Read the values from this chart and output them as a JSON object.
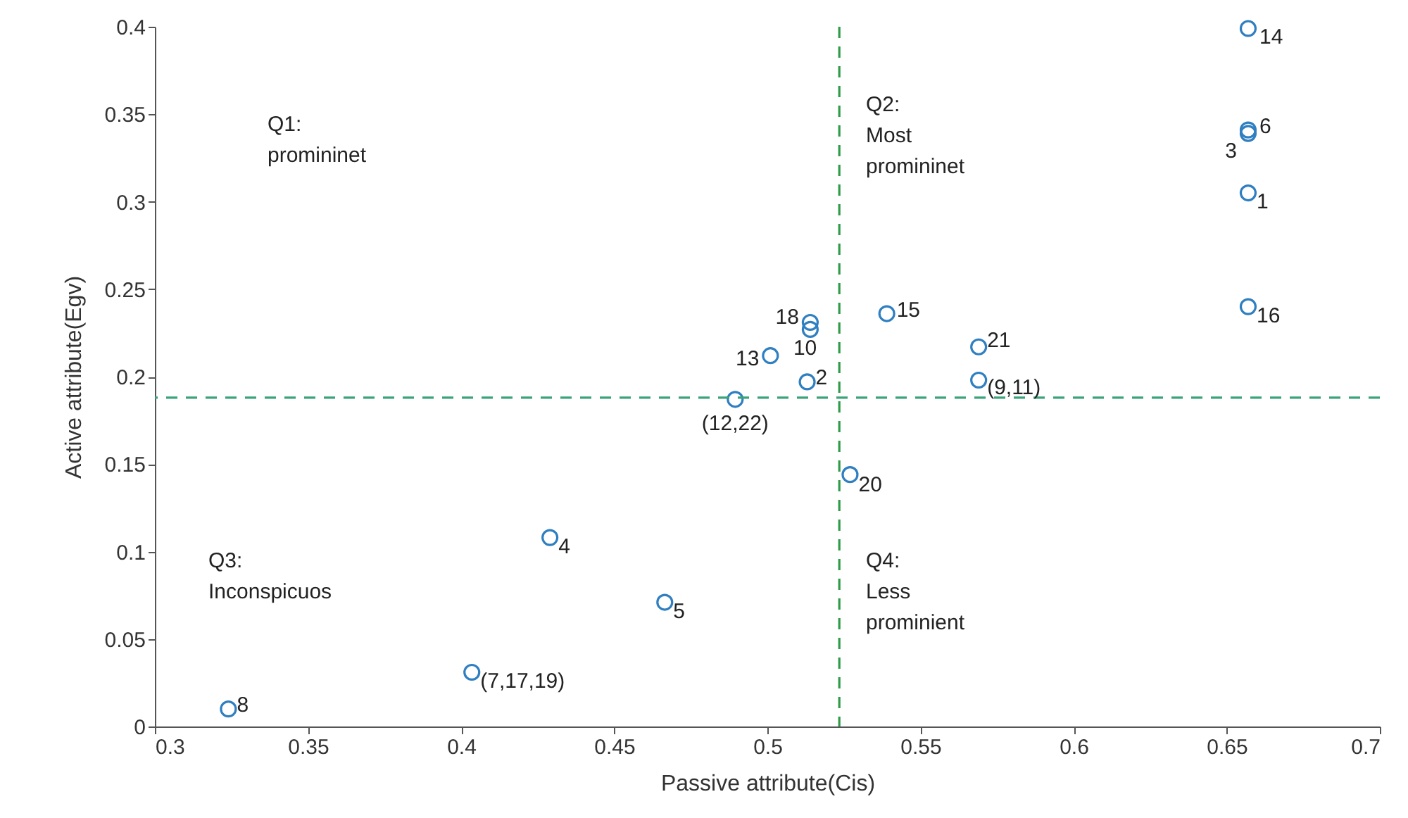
{
  "chart_data": {
    "type": "scatter",
    "xlabel": "Passive attribute(Cis)",
    "ylabel": "Active attribute(Egv)",
    "xlim": [
      0.3,
      0.7
    ],
    "xticks": [
      0.3,
      0.35,
      0.4,
      0.45,
      0.5,
      0.55,
      0.6,
      0.65,
      0.7
    ],
    "ylim": [
      0,
      0.4
    ],
    "yticks": [
      0,
      0.05,
      0.1,
      0.15,
      0.2,
      0.25,
      0.3,
      0.35,
      0.4
    ],
    "marker": "circle",
    "grid": false,
    "series": [
      {
        "color": "#2f7fc1",
        "x": [
          0.657,
          0.657,
          0.657,
          0.657,
          0.657,
          0.539,
          0.514,
          0.514,
          0.501,
          0.569,
          0.513,
          0.569,
          0.4895,
          0.527,
          0.429,
          0.4665,
          0.4035,
          0.324
        ],
        "values": [
          0.399,
          0.341,
          0.339,
          0.305,
          0.24,
          0.236,
          0.231,
          0.227,
          0.212,
          0.217,
          0.197,
          0.198,
          0.187,
          0.144,
          0.108,
          0.071,
          0.031,
          0.01
        ]
      }
    ],
    "ref_lines": [
      {
        "axis": "x",
        "value": 0.5235,
        "color": "#2e9b4a",
        "line_style": "dashed"
      },
      {
        "axis": "y",
        "value": 0.188,
        "color": "#3aa37a",
        "line_style": "dashed"
      }
    ],
    "annotations": [
      "Q1:\npromininet",
      "Q2:\nMost\npromininet",
      "Q3:\nInconspicuos",
      "Q4:\nLess\nprominient",
      {
        "text": "14",
        "x": 0.657,
        "y": 0.399
      },
      {
        "text": "6",
        "x": 0.657,
        "y": 0.341
      },
      {
        "text": "3",
        "x": 0.657,
        "y": 0.339
      },
      {
        "text": "1",
        "x": 0.657,
        "y": 0.305
      },
      {
        "text": "16",
        "x": 0.657,
        "y": 0.24
      },
      {
        "text": "15",
        "x": 0.539,
        "y": 0.236
      },
      {
        "text": "18",
        "x": 0.514,
        "y": 0.231
      },
      {
        "text": "10",
        "x": 0.514,
        "y": 0.227
      },
      {
        "text": "13",
        "x": 0.501,
        "y": 0.212
      },
      {
        "text": "21",
        "x": 0.569,
        "y": 0.217
      },
      {
        "text": "2",
        "x": 0.513,
        "y": 0.197
      },
      {
        "text": "(9,11)",
        "x": 0.569,
        "y": 0.198
      },
      {
        "text": "(12,22)",
        "x": 0.4895,
        "y": 0.187
      },
      {
        "text": "20",
        "x": 0.527,
        "y": 0.144
      },
      {
        "text": "4",
        "x": 0.429,
        "y": 0.108
      },
      {
        "text": "5",
        "x": 0.4665,
        "y": 0.071
      },
      {
        "text": "(7,17,19)",
        "x": 0.4035,
        "y": 0.031
      },
      {
        "text": "8",
        "x": 0.324,
        "y": 0.01
      }
    ]
  }
}
